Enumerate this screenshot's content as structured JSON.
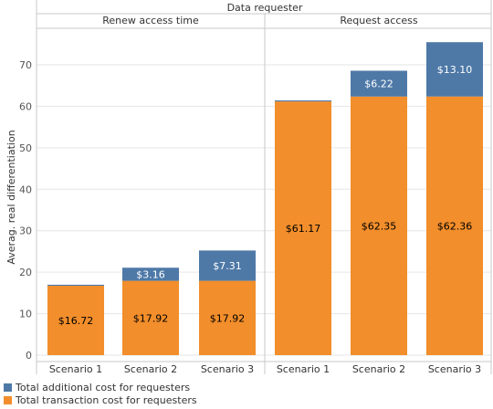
{
  "chart_data": {
    "type": "bar",
    "stacked": true,
    "title": "Data requester",
    "ylabel": "Averag. real differentiation",
    "xlabel": "",
    "ylim": [
      0,
      76
    ],
    "yticks": [
      0,
      10,
      20,
      30,
      40,
      50,
      60,
      70
    ],
    "grid": true,
    "legend_position": "bottom-left",
    "colors": {
      "additional": "#4E79A7",
      "transaction": "#F28E2B"
    },
    "panels": [
      {
        "name": "Renew access time",
        "categories": [
          "Scenario 1",
          "Scenario 2",
          "Scenario 3"
        ],
        "series": [
          {
            "name": "Total transaction cost for requesters",
            "key": "transaction",
            "values": [
              16.72,
              17.92,
              17.92
            ],
            "labels": [
              "$16.72",
              "$17.92",
              "$17.92"
            ]
          },
          {
            "name": "Total additional cost for requesters",
            "key": "additional",
            "values": [
              0.25,
              3.16,
              7.31
            ],
            "labels": [
              "",
              "$3.16",
              "$7.31"
            ]
          }
        ]
      },
      {
        "name": "Request access",
        "categories": [
          "Scenario 1",
          "Scenario 2",
          "Scenario 3"
        ],
        "series": [
          {
            "name": "Total transaction cost for requesters",
            "key": "transaction",
            "values": [
              61.17,
              62.35,
              62.36
            ],
            "labels": [
              "$61.17",
              "$62.35",
              "$62.36"
            ]
          },
          {
            "name": "Total additional cost for requesters",
            "key": "additional",
            "values": [
              0.25,
              6.22,
              13.1
            ],
            "labels": [
              "",
              "$6.22",
              "$13.10"
            ]
          }
        ]
      }
    ],
    "legend": [
      {
        "name": "Total additional cost for requesters",
        "key": "additional"
      },
      {
        "name": "Total transaction cost for requesters",
        "key": "transaction"
      }
    ]
  }
}
